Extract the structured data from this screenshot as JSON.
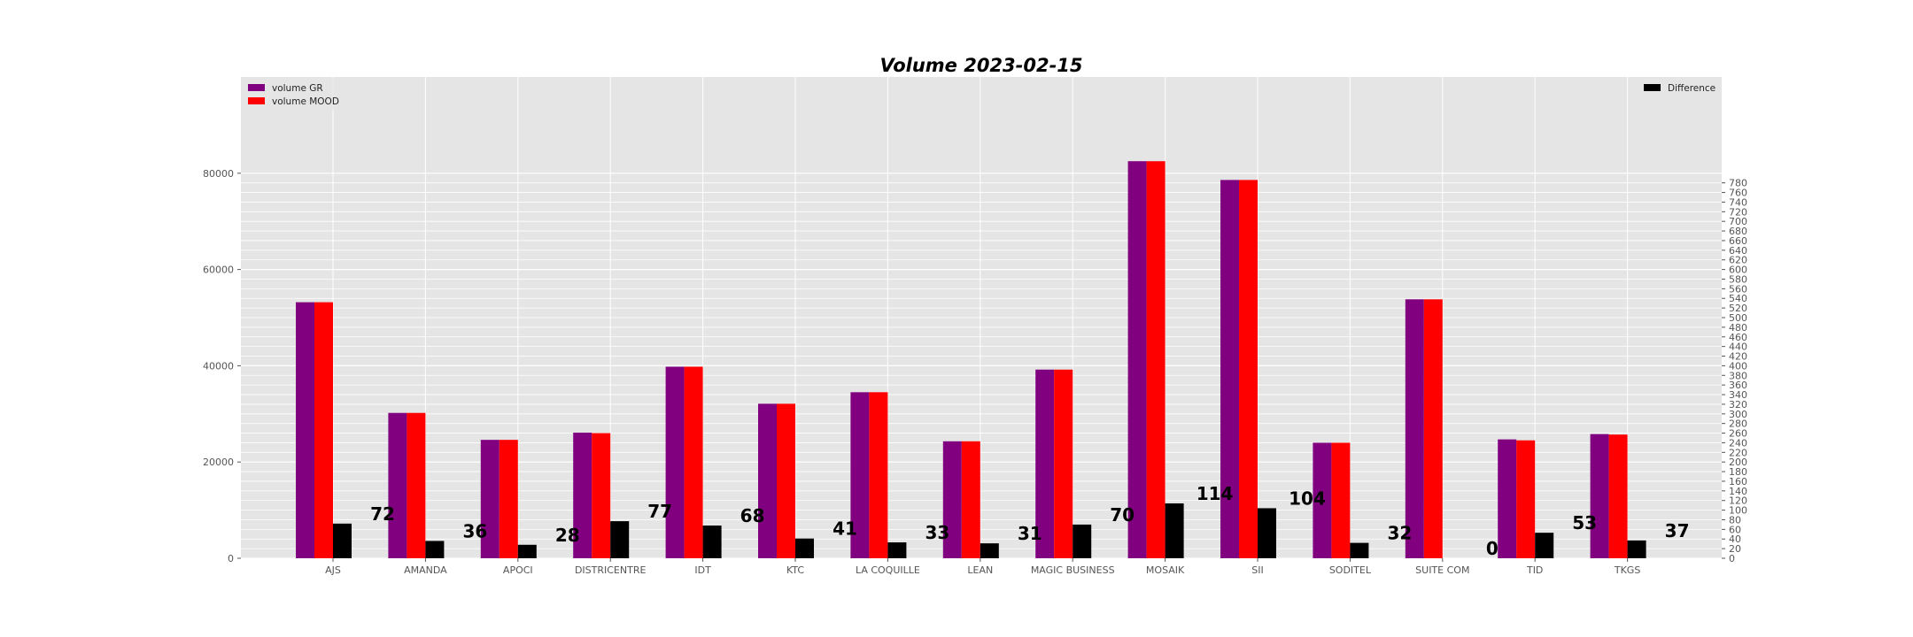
{
  "chart_data": {
    "type": "bar",
    "title": "Volume 2023-02-15",
    "xlabel": "",
    "ylabel": "",
    "categories": [
      "AJS",
      "AMANDA",
      "APOCI",
      "DISTRICENTRE",
      "IDT",
      "KTC",
      "LA COQUILLE",
      "LEAN",
      "MAGIC BUSINESS",
      "MOSAIK",
      "SII",
      "SODITEL",
      "SUITE COM",
      "TID",
      "TKGS"
    ],
    "series": [
      {
        "name": "volume GR",
        "axis": "left",
        "color": "#800080",
        "values": [
          53200,
          30200,
          24600,
          26100,
          39800,
          32100,
          34500,
          24300,
          39200,
          82500,
          78600,
          24000,
          53800,
          24700,
          25800
        ]
      },
      {
        "name": "volume MOOD",
        "axis": "left",
        "color": "#ff0000",
        "values": [
          53200,
          30200,
          24600,
          26000,
          39800,
          32100,
          34500,
          24300,
          39200,
          82500,
          78600,
          24000,
          53800,
          24500,
          25700
        ]
      },
      {
        "name": "Difference",
        "axis": "right",
        "color": "#000000",
        "values": [
          72,
          36,
          28,
          77,
          68,
          41,
          33,
          31,
          70,
          114,
          104,
          32,
          0,
          53,
          37
        ]
      }
    ],
    "ylim_left": [
      0,
      100000
    ],
    "yticks_left": [
      "0",
      "20000",
      "40000",
      "60000",
      "80000"
    ],
    "ylim_right": [
      0,
      1000
    ],
    "yticks_right": [
      "0",
      "20",
      "40",
      "60",
      "80",
      "100",
      "120",
      "140",
      "160",
      "180",
      "200",
      "220",
      "240",
      "260",
      "280",
      "300",
      "320",
      "340",
      "360",
      "380",
      "400",
      "420",
      "440",
      "460",
      "480",
      "500",
      "520",
      "540",
      "560",
      "580",
      "600",
      "620",
      "640",
      "660",
      "680",
      "700",
      "720",
      "740",
      "760",
      "780"
    ],
    "grid": true,
    "legend_left_placement": "top-left",
    "legend_right_placement": "top-right",
    "background_color": "#e5e5e5"
  }
}
